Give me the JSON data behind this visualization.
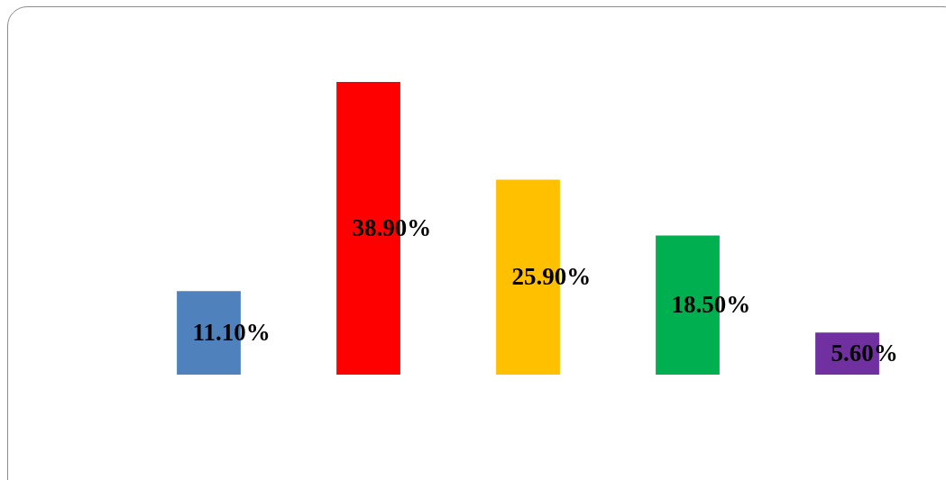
{
  "chart_data": {
    "type": "bar",
    "categories": [
      null,
      null,
      null,
      null,
      null
    ],
    "values": [
      11.1,
      38.9,
      25.9,
      18.5,
      5.6
    ],
    "colors": [
      "#4f81bd",
      "#ff0000",
      "#ffc000",
      "#00b050",
      "#7030a0"
    ],
    "value_labels": [
      "11.10%",
      "38.90%",
      "25.90%",
      "18.50%",
      "5.60%"
    ]
  }
}
